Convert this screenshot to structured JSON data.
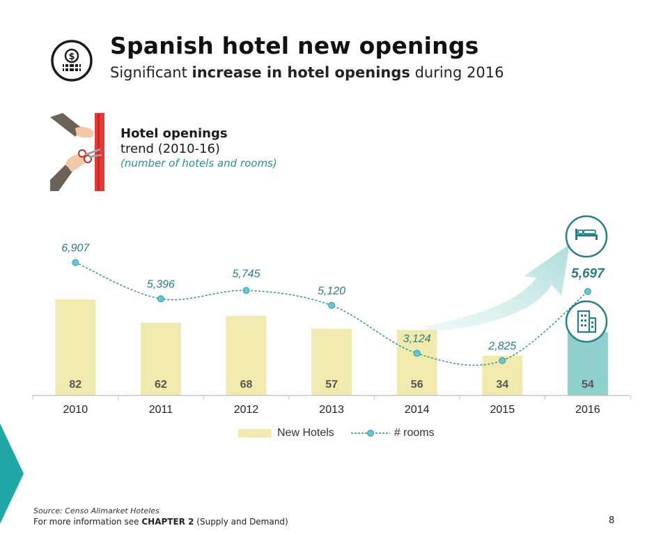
{
  "header": {
    "title": "Spanish hotel new openings",
    "subtitle_pre": "Significant ",
    "subtitle_bold": "increase in hotel openings",
    "subtitle_post": " during 2016",
    "icon": "money-stack-icon"
  },
  "section": {
    "title_bold": "Hotel openings",
    "title_normal": "trend (2010-16)",
    "note": "(number of hotels and rooms)",
    "icon": "ribbon-cutting-icon"
  },
  "chart_data": {
    "type": "bar",
    "categories": [
      "2010",
      "2011",
      "2012",
      "2013",
      "2014",
      "2015",
      "2016"
    ],
    "series": [
      {
        "name": "New Hotels",
        "type": "bar",
        "values": [
          82,
          62,
          68,
          57,
          56,
          34,
          54
        ],
        "color": "#f0eaaf",
        "highlight_color": "#8fcfcc"
      },
      {
        "name": "# rooms",
        "type": "line",
        "style": "dashed",
        "values": [
          6907,
          5396,
          5745,
          5120,
          3124,
          2825,
          5697
        ],
        "labels": [
          "6,907",
          "5,396",
          "5,745",
          "5,120",
          "3,124",
          "2,825",
          "5,697"
        ],
        "color": "#2c8f8c"
      }
    ],
    "highlight_category": "2016",
    "legend": "bottom",
    "grid": false
  },
  "icons": [
    "bed-icon",
    "building-icon",
    "growth-arrow-icon"
  ],
  "footer": {
    "source": "Source: Censo Alimarket Hoteles",
    "more_pre": "For more information see ",
    "more_bold": "CHAPTER 2",
    "more_post": " (Supply and Demand)",
    "page_number": "8"
  }
}
